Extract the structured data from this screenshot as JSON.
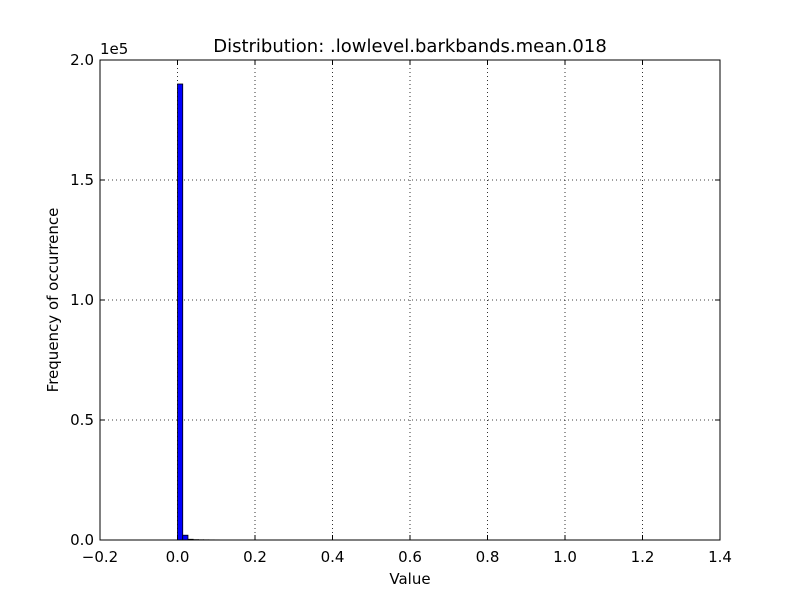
{
  "chart_data": {
    "type": "bar",
    "title": "Distribution: .lowlevel.barkbands.mean.018",
    "xlabel": "Value",
    "ylabel": "Frequency of occurrence",
    "xlim": [
      -0.2,
      1.4
    ],
    "ylim": [
      0,
      200000
    ],
    "x_ticks": [
      -0.2,
      0.0,
      0.2,
      0.4,
      0.6,
      0.8,
      1.0,
      1.2,
      1.4
    ],
    "x_tick_labels": [
      "−0.2",
      "0.0",
      "0.2",
      "0.4",
      "0.6",
      "0.8",
      "1.0",
      "1.2",
      "1.4"
    ],
    "y_ticks": [
      0,
      50000,
      100000,
      150000,
      200000
    ],
    "y_tick_labels": [
      "0.0",
      "0.5",
      "1.0",
      "1.5",
      "2.0"
    ],
    "y_offset_label": "1e5",
    "grid": true,
    "bar_color": "#0000ff",
    "bin_start": 0.0,
    "bin_width": 0.0135,
    "values": [
      190000,
      2000,
      300,
      150,
      100,
      80,
      60,
      50,
      40,
      30,
      25,
      20,
      18,
      15,
      12,
      10,
      8,
      6,
      5,
      4,
      3,
      3,
      2,
      2,
      2,
      1,
      1,
      1,
      1,
      1,
      1,
      1,
      1,
      1,
      1,
      1,
      1,
      1,
      1,
      1,
      1,
      1,
      1,
      1,
      1,
      1,
      1,
      1,
      1,
      1,
      1,
      1,
      1,
      1,
      1,
      1,
      1,
      1,
      1,
      1,
      1,
      1,
      1,
      1,
      1,
      1,
      1,
      1,
      1,
      1,
      1,
      1,
      1,
      1,
      1,
      1,
      1,
      1,
      1,
      1,
      1,
      1,
      1,
      1,
      1,
      1,
      1,
      1,
      1,
      1,
      1,
      1,
      1,
      1,
      1,
      1,
      1,
      1,
      1,
      1
    ]
  }
}
